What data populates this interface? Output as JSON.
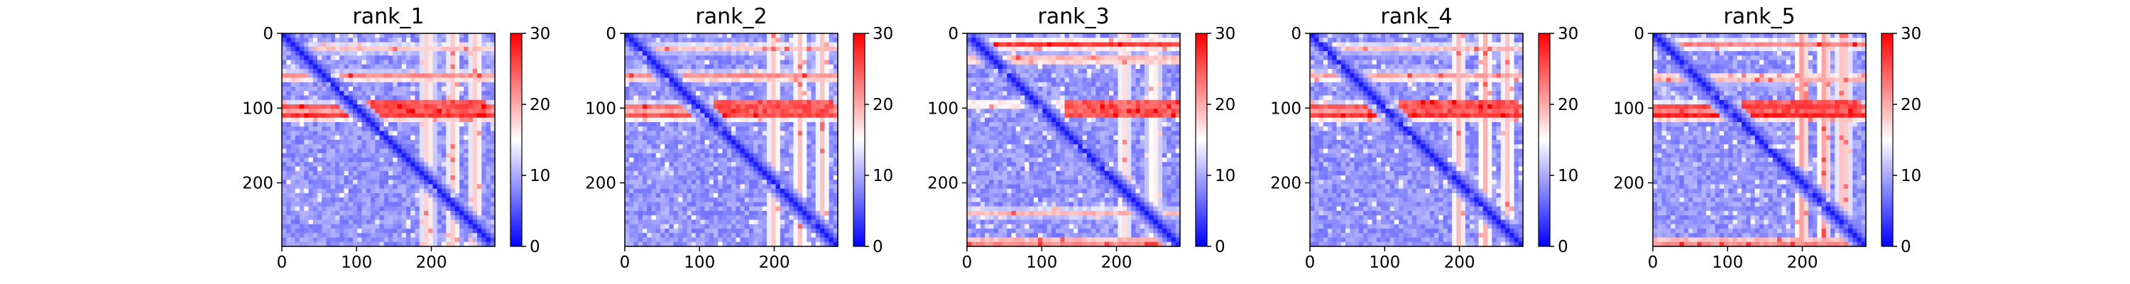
{
  "chart_data": [
    {
      "type": "heatmap",
      "title": "rank_1",
      "xlim": [
        0,
        285
      ],
      "ylim": [
        285,
        0
      ],
      "xticks": [
        0,
        100,
        200
      ],
      "yticks": [
        0,
        100,
        200
      ],
      "colorbar": {
        "min": 0,
        "max": 30,
        "ticks": [
          0,
          10,
          20,
          30
        ],
        "colormap": "bwr"
      },
      "hot_rows": [
        [
          20,
          0.6
        ],
        [
          58,
          0.75
        ],
        [
          100,
          0.9
        ],
        [
          110,
          0.85
        ]
      ],
      "hot_cols": [
        [
          195,
          0.7
        ],
        [
          230,
          0.7
        ],
        [
          260,
          0.7
        ]
      ]
    },
    {
      "type": "heatmap",
      "title": "rank_2",
      "xlim": [
        0,
        285
      ],
      "ylim": [
        285,
        0
      ],
      "xticks": [
        0,
        100,
        200
      ],
      "yticks": [
        0,
        100,
        200
      ],
      "colorbar": {
        "min": 0,
        "max": 30,
        "ticks": [
          0,
          10,
          20,
          30
        ],
        "colormap": "bwr"
      },
      "hot_rows": [
        [
          20,
          0.6
        ],
        [
          58,
          0.75
        ],
        [
          100,
          0.85
        ],
        [
          110,
          0.8
        ]
      ],
      "hot_cols": [
        [
          200,
          0.7
        ],
        [
          235,
          0.7
        ],
        [
          265,
          0.7
        ]
      ]
    },
    {
      "type": "heatmap",
      "title": "rank_3",
      "xlim": [
        0,
        285
      ],
      "ylim": [
        285,
        0
      ],
      "xticks": [
        0,
        100,
        200
      ],
      "yticks": [
        0,
        100,
        200
      ],
      "colorbar": {
        "min": 0,
        "max": 30,
        "ticks": [
          0,
          10,
          20,
          30
        ],
        "colormap": "bwr"
      },
      "hot_rows": [
        [
          15,
          0.85
        ],
        [
          35,
          0.7
        ],
        [
          95,
          0.6
        ],
        [
          240,
          0.6
        ],
        [
          280,
          0.8
        ]
      ],
      "hot_cols": [
        [
          210,
          0.6
        ],
        [
          250,
          0.6
        ]
      ]
    },
    {
      "type": "heatmap",
      "title": "rank_4",
      "xlim": [
        0,
        285
      ],
      "ylim": [
        285,
        0
      ],
      "xticks": [
        0,
        100,
        200
      ],
      "yticks": [
        0,
        100,
        200
      ],
      "colorbar": {
        "min": 0,
        "max": 30,
        "ticks": [
          0,
          10,
          20,
          30
        ],
        "colormap": "bwr"
      },
      "hot_rows": [
        [
          20,
          0.6
        ],
        [
          58,
          0.7
        ],
        [
          100,
          0.9
        ],
        [
          110,
          0.85
        ]
      ],
      "hot_cols": [
        [
          200,
          0.75
        ],
        [
          235,
          0.75
        ],
        [
          265,
          0.7
        ]
      ]
    },
    {
      "type": "heatmap",
      "title": "rank_5",
      "xlim": [
        0,
        285
      ],
      "ylim": [
        285,
        0
      ],
      "xticks": [
        0,
        100,
        200
      ],
      "yticks": [
        0,
        100,
        200
      ],
      "colorbar": {
        "min": 0,
        "max": 30,
        "ticks": [
          0,
          10,
          20,
          30
        ],
        "colormap": "bwr"
      },
      "hot_rows": [
        [
          15,
          0.7
        ],
        [
          60,
          0.7
        ],
        [
          100,
          0.95
        ],
        [
          110,
          0.9
        ],
        [
          280,
          0.8
        ]
      ],
      "hot_cols": [
        [
          200,
          0.85
        ],
        [
          230,
          0.85
        ],
        [
          255,
          0.8
        ]
      ]
    }
  ]
}
